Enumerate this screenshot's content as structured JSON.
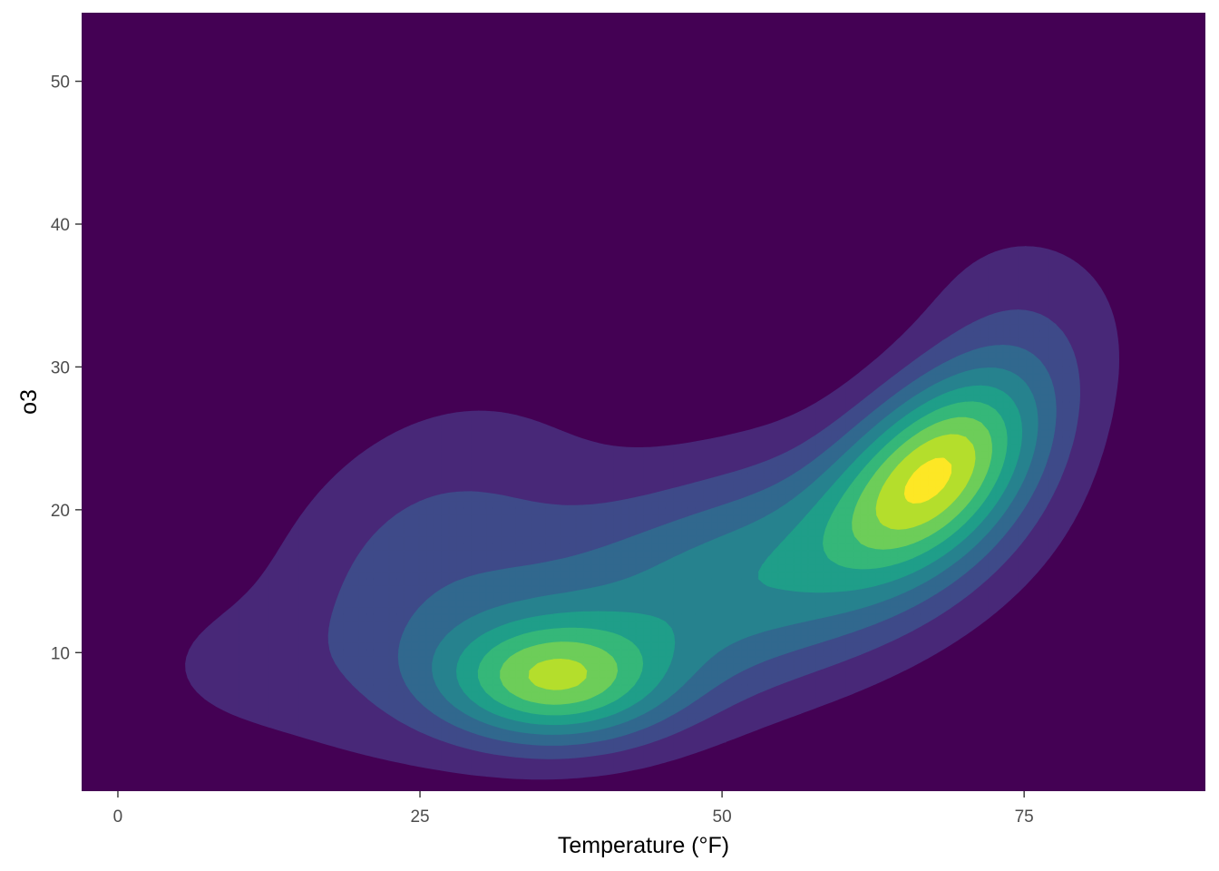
{
  "chart_data": {
    "type": "heatmap",
    "subtype": "filled-density-contour",
    "title": "",
    "xlabel": "Temperature (°F)",
    "ylabel": "o3",
    "xlim": [
      -3,
      90
    ],
    "ylim": [
      0.3,
      54.8
    ],
    "x_ticks": [
      0,
      25,
      50,
      75
    ],
    "y_ticks": [
      10,
      20,
      30,
      40,
      50
    ],
    "x_tick_labels": [
      "0",
      "25",
      "50",
      "75"
    ],
    "y_tick_labels": [
      "10",
      "20",
      "30",
      "40",
      "50"
    ],
    "grid": false,
    "legend": "none",
    "levels": [
      {
        "level": 0,
        "color": "#440154"
      },
      {
        "level": 1,
        "color": "#482878"
      },
      {
        "level": 2,
        "color": "#3E4A89"
      },
      {
        "level": 3,
        "color": "#31688E"
      },
      {
        "level": 4,
        "color": "#26828E"
      },
      {
        "level": 5,
        "color": "#1F9E89"
      },
      {
        "level": 6,
        "color": "#35B779"
      },
      {
        "level": 7,
        "color": "#6DCD59"
      },
      {
        "level": 8,
        "color": "#B4DE2C"
      },
      {
        "level": 9,
        "color": "#FDE725"
      }
    ],
    "density_components": [
      {
        "x": 36,
        "y": 8,
        "sx": 6.5,
        "sy": 3.0,
        "rho": 0.0,
        "w": 1.0
      },
      {
        "x": 68,
        "y": 23,
        "sx": 6.0,
        "sy": 5.0,
        "rho": 0.45,
        "w": 1.25
      },
      {
        "x": 52,
        "y": 15,
        "sx": 14,
        "sy": 6.5,
        "rho": 0.45,
        "w": 0.8
      },
      {
        "x": 25,
        "y": 16,
        "sx": 10,
        "sy": 8.5,
        "rho": 0.35,
        "w": 0.38
      },
      {
        "x": 8,
        "y": 9,
        "sx": 6,
        "sy": 3.5,
        "rho": 0.0,
        "w": 0.12
      },
      {
        "x": 75,
        "y": 34,
        "sx": 7,
        "sy": 5.5,
        "rho": 0.0,
        "w": 0.22
      }
    ]
  }
}
